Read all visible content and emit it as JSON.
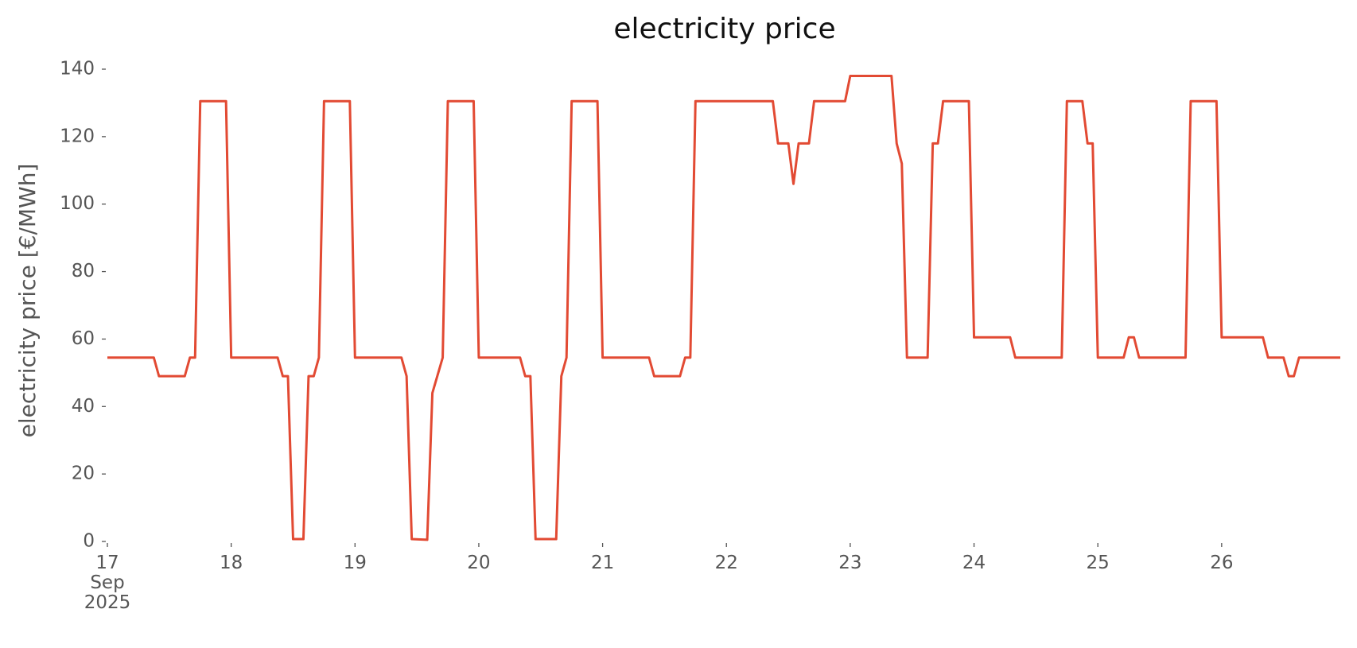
{
  "chart_data": {
    "type": "line",
    "title": "electricity price",
    "ylabel": "electricity price [€/MWh]",
    "x": [
      "2025-09-17T00:00",
      "2025-09-17T09:00",
      "2025-09-17T10:00",
      "2025-09-17T15:00",
      "2025-09-17T16:00",
      "2025-09-17T17:00",
      "2025-09-17T18:00",
      "2025-09-17T23:00",
      "2025-09-18T00:00",
      "2025-09-18T09:00",
      "2025-09-18T10:00",
      "2025-09-18T11:00",
      "2025-09-18T12:00",
      "2025-09-18T14:00",
      "2025-09-18T15:00",
      "2025-09-18T16:00",
      "2025-09-18T17:00",
      "2025-09-18T18:00",
      "2025-09-18T23:00",
      "2025-09-19T00:00",
      "2025-09-19T09:00",
      "2025-09-19T10:00",
      "2025-09-19T11:00",
      "2025-09-19T14:00",
      "2025-09-19T15:00",
      "2025-09-19T17:00",
      "2025-09-19T18:00",
      "2025-09-19T23:00",
      "2025-09-20T00:00",
      "2025-09-20T08:00",
      "2025-09-20T09:00",
      "2025-09-20T10:00",
      "2025-09-20T11:00",
      "2025-09-20T15:00",
      "2025-09-20T16:00",
      "2025-09-20T17:00",
      "2025-09-20T18:00",
      "2025-09-20T23:00",
      "2025-09-21T00:00",
      "2025-09-21T09:00",
      "2025-09-21T10:00",
      "2025-09-21T15:00",
      "2025-09-21T16:00",
      "2025-09-21T17:00",
      "2025-09-21T18:00",
      "2025-09-22T09:00",
      "2025-09-22T10:00",
      "2025-09-22T12:00",
      "2025-09-22T13:00",
      "2025-09-22T14:00",
      "2025-09-22T16:00",
      "2025-09-22T17:00",
      "2025-09-22T23:00",
      "2025-09-23T00:00",
      "2025-09-23T08:00",
      "2025-09-23T09:00",
      "2025-09-23T10:00",
      "2025-09-23T11:00",
      "2025-09-23T15:00",
      "2025-09-23T16:00",
      "2025-09-23T17:00",
      "2025-09-23T18:00",
      "2025-09-23T23:00",
      "2025-09-24T00:00",
      "2025-09-24T07:00",
      "2025-09-24T08:00",
      "2025-09-24T17:00",
      "2025-09-24T18:00",
      "2025-09-24T21:00",
      "2025-09-24T22:00",
      "2025-09-24T23:00",
      "2025-09-25T00:00",
      "2025-09-25T05:00",
      "2025-09-25T06:00",
      "2025-09-25T07:00",
      "2025-09-25T08:00",
      "2025-09-25T17:00",
      "2025-09-25T18:00",
      "2025-09-25T23:00",
      "2025-09-26T00:00",
      "2025-09-26T08:00",
      "2025-09-26T09:00",
      "2025-09-26T12:00",
      "2025-09-26T13:00",
      "2025-09-26T14:00",
      "2025-09-26T15:00",
      "2025-09-26T23:00"
    ],
    "series": [
      {
        "name": "electricity price",
        "color": "#e24a33",
        "values": [
          54.5,
          54.5,
          49,
          49,
          54.5,
          54.5,
          130.5,
          130.5,
          54.5,
          54.5,
          49,
          49,
          0.7,
          0.7,
          49,
          49,
          54.5,
          130.5,
          130.5,
          54.5,
          54.5,
          49,
          0.7,
          0.5,
          44,
          54.5,
          130.5,
          130.5,
          54.5,
          54.5,
          49,
          49,
          0.7,
          0.7,
          49,
          54.5,
          130.5,
          130.5,
          54.5,
          54.5,
          49,
          49,
          54.5,
          54.5,
          130.5,
          130.5,
          118,
          118,
          106,
          118,
          118,
          130.5,
          130.5,
          138,
          138,
          118,
          112,
          54.5,
          54.5,
          118,
          118,
          130.5,
          130.5,
          60.5,
          60.5,
          54.5,
          54.5,
          130.5,
          130.5,
          118,
          118,
          54.5,
          54.5,
          60.5,
          60.5,
          54.5,
          54.5,
          130.5,
          130.5,
          60.5,
          60.5,
          54.5,
          54.5,
          49,
          49,
          54.5,
          54.5
        ]
      }
    ],
    "xlim": [
      "2025-09-17T00:00",
      "2025-09-26T23:00"
    ],
    "xticks": [
      {
        "value": "2025-09-17T00:00",
        "label": "17\nSep\n2025"
      },
      {
        "value": "2025-09-18T00:00",
        "label": "18"
      },
      {
        "value": "2025-09-19T00:00",
        "label": "19"
      },
      {
        "value": "2025-09-20T00:00",
        "label": "20"
      },
      {
        "value": "2025-09-21T00:00",
        "label": "21"
      },
      {
        "value": "2025-09-22T00:00",
        "label": "22"
      },
      {
        "value": "2025-09-23T00:00",
        "label": "23"
      },
      {
        "value": "2025-09-24T00:00",
        "label": "24"
      },
      {
        "value": "2025-09-25T00:00",
        "label": "25"
      },
      {
        "value": "2025-09-26T00:00",
        "label": "26"
      }
    ],
    "ylim": [
      0,
      140
    ],
    "yticks": [
      0,
      20,
      40,
      60,
      80,
      100,
      120,
      140
    ],
    "grid": false
  }
}
